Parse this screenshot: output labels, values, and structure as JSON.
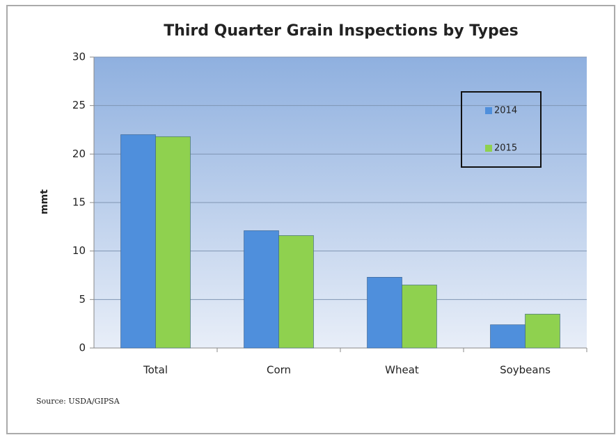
{
  "chart_data": {
    "type": "bar",
    "title": "Third Quarter Grain Inspections by Types",
    "y_label": "mmt",
    "source": "Source: USDA/GIPSA",
    "categories": [
      "Total",
      "Corn",
      "Wheat",
      "Soybeans"
    ],
    "series": [
      {
        "name": "2014",
        "color": "#4f8fdc",
        "values": [
          22.0,
          12.1,
          7.3,
          2.4
        ]
      },
      {
        "name": "2015",
        "color": "#8fd14f",
        "values": [
          21.8,
          11.6,
          6.5,
          3.5
        ]
      }
    ],
    "ylim": [
      0,
      30
    ],
    "yticks": [
      0,
      5,
      10,
      15,
      20,
      25,
      30
    ],
    "grid": true,
    "legend": "upper right"
  }
}
